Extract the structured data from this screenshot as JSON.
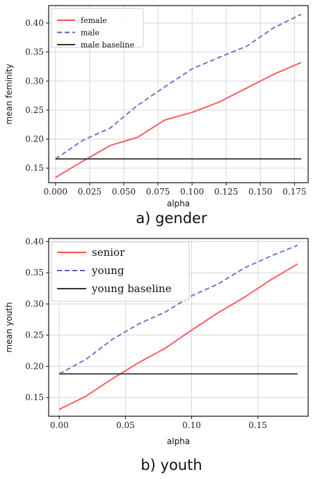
{
  "colors": {
    "female": "#ff4d55",
    "male": "#5562c0",
    "baseline": "#333333",
    "grid": "#d6d6d6",
    "frame": "#111111"
  },
  "chart_data": [
    {
      "type": "line",
      "caption": "a) gender",
      "xlabel": "alpha",
      "ylabel": "mean feminity",
      "xlim": [
        -0.005,
        0.185
      ],
      "ylim": [
        0.125,
        0.43
      ],
      "xticks": [
        0.0,
        0.025,
        0.05,
        0.075,
        0.1,
        0.125,
        0.15,
        0.175
      ],
      "xtick_labels": [
        "0.000",
        "0.025",
        "0.050",
        "0.075",
        "0.100",
        "0.125",
        "0.150",
        "0.175"
      ],
      "yticks": [
        0.15,
        0.2,
        0.25,
        0.3,
        0.35,
        0.4
      ],
      "ytick_labels": [
        "0.15",
        "0.20",
        "0.25",
        "0.30",
        "0.35",
        "0.40"
      ],
      "grid": true,
      "legend_position": "top-left",
      "series": [
        {
          "name": "female",
          "style": "solid",
          "color": "#ff4d55",
          "x": [
            0.0,
            0.02,
            0.04,
            0.06,
            0.08,
            0.1,
            0.12,
            0.14,
            0.16,
            0.18
          ],
          "y": [
            0.134,
            0.162,
            0.189,
            0.203,
            0.233,
            0.246,
            0.264,
            0.288,
            0.312,
            0.332
          ]
        },
        {
          "name": "male",
          "style": "dashed",
          "color": "#5562c0",
          "x": [
            0.0,
            0.02,
            0.04,
            0.06,
            0.08,
            0.1,
            0.12,
            0.14,
            0.16,
            0.18
          ],
          "y": [
            0.166,
            0.198,
            0.219,
            0.258,
            0.29,
            0.321,
            0.341,
            0.36,
            0.392,
            0.415
          ]
        },
        {
          "name": "male baseline",
          "style": "solid",
          "color": "#333333",
          "x": [
            0.0,
            0.18
          ],
          "y": [
            0.166,
            0.166
          ]
        }
      ]
    },
    {
      "type": "line",
      "caption": "b) youth",
      "xlabel": "alpha",
      "ylabel": "mean youth",
      "xlim": [
        -0.008,
        0.188
      ],
      "ylim": [
        0.12,
        0.405
      ],
      "xticks": [
        0.0,
        0.05,
        0.1,
        0.15
      ],
      "xtick_labels": [
        "0.00",
        "0.05",
        "0.10",
        "0.15"
      ],
      "yticks": [
        0.15,
        0.2,
        0.25,
        0.3,
        0.35,
        0.4
      ],
      "ytick_labels": [
        "0.15",
        "0.20",
        "0.25",
        "0.30",
        "0.35",
        "0.40"
      ],
      "grid": true,
      "legend_position": "top-left",
      "series": [
        {
          "name": "senior",
          "style": "solid",
          "color": "#ff4d55",
          "x": [
            0.0,
            0.02,
            0.04,
            0.06,
            0.08,
            0.1,
            0.12,
            0.14,
            0.16,
            0.18
          ],
          "y": [
            0.131,
            0.152,
            0.18,
            0.206,
            0.229,
            0.258,
            0.286,
            0.311,
            0.339,
            0.364
          ]
        },
        {
          "name": "young",
          "style": "dashed",
          "color": "#5562c0",
          "x": [
            0.0,
            0.02,
            0.04,
            0.06,
            0.08,
            0.1,
            0.12,
            0.14,
            0.16,
            0.18
          ],
          "y": [
            0.188,
            0.211,
            0.243,
            0.268,
            0.287,
            0.313,
            0.332,
            0.358,
            0.377,
            0.394
          ]
        },
        {
          "name": "young baseline",
          "style": "solid",
          "color": "#333333",
          "x": [
            0.0,
            0.18
          ],
          "y": [
            0.188,
            0.188
          ]
        }
      ]
    }
  ]
}
